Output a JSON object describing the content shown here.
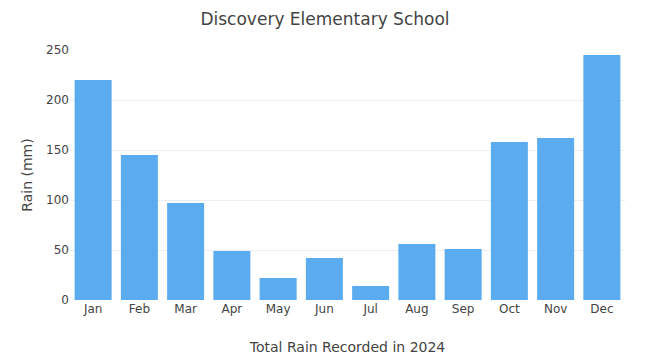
{
  "chart_data": {
    "type": "bar",
    "title": "Discovery Elementary School",
    "xlabel": "Total Rain Recorded in 2024",
    "ylabel": "Rain (mm)",
    "categories": [
      "Jan",
      "Feb",
      "Mar",
      "Apr",
      "May",
      "Jun",
      "Jul",
      "Aug",
      "Sep",
      "Oct",
      "Nov",
      "Dec"
    ],
    "values": [
      220,
      145,
      97,
      49,
      22,
      42,
      14,
      56,
      51,
      158,
      162,
      245
    ],
    "color": "#5aabf0",
    "ylim": [
      0,
      250
    ],
    "yticks": [
      0,
      50,
      100,
      150,
      200,
      250
    ],
    "grid": true
  }
}
